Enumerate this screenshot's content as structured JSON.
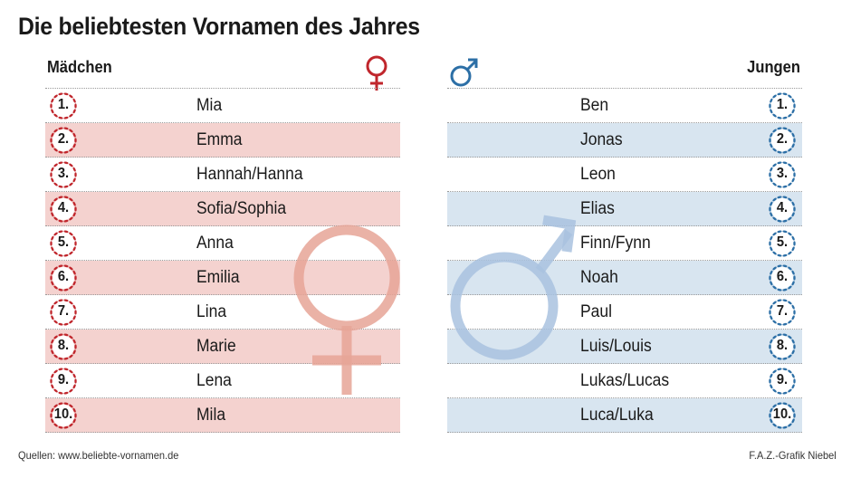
{
  "title": "Die beliebtesten Vornamen des Jahres",
  "girls": {
    "heading": "Mädchen",
    "names": [
      "Mia",
      "Emma",
      "Hannah/Hanna",
      "Sofia/Sophia",
      "Anna",
      "Emilia",
      "Lina",
      "Marie",
      "Lena",
      "Mila"
    ]
  },
  "boys": {
    "heading": "Jungen",
    "names": [
      "Ben",
      "Jonas",
      "Leon",
      "Elias",
      "Finn/Fynn",
      "Noah",
      "Paul",
      "Luis/Louis",
      "Lukas/Lucas",
      "Luca/Luka"
    ]
  },
  "ranks": [
    "1.",
    "2.",
    "3.",
    "4.",
    "5.",
    "6.",
    "7.",
    "8.",
    "9.",
    "10."
  ],
  "source": "Quellen: www.beliebte-vornamen.de",
  "credit": "F.A.Z.-Grafik Niebel",
  "icons": {
    "female": "female-symbol-icon",
    "male": "male-symbol-icon",
    "badge": "laurel-wreath-icon"
  },
  "colors": {
    "female_accent": "#c0262c",
    "female_band": "#f2c7c2",
    "female_symbol": "#e6a597",
    "male_accent": "#2c6fa6",
    "male_band": "#d6e5f1",
    "male_symbol": "#a9c2df"
  },
  "chart_data": {
    "type": "table",
    "columns": [
      "Mädchen",
      "Jungen"
    ],
    "rows": [
      {
        "rank": "1.",
        "girl": "Mia",
        "boy": "Ben"
      },
      {
        "rank": "2.",
        "girl": "Emma",
        "boy": "Jonas"
      },
      {
        "rank": "3.",
        "girl": "Hannah/Hanna",
        "boy": "Leon"
      },
      {
        "rank": "4.",
        "girl": "Sofia/Sophia",
        "boy": "Elias"
      },
      {
        "rank": "5.",
        "girl": "Anna",
        "boy": "Finn/Fynn"
      },
      {
        "rank": "6.",
        "girl": "Emilia",
        "boy": "Noah"
      },
      {
        "rank": "7.",
        "girl": "Lina",
        "boy": "Paul"
      },
      {
        "rank": "8.",
        "girl": "Marie",
        "boy": "Luis/Louis"
      },
      {
        "rank": "9.",
        "girl": "Lena",
        "boy": "Lukas/Lucas"
      },
      {
        "rank": "10.",
        "girl": "Mila",
        "boy": "Luca/Luka"
      }
    ],
    "title": "Die beliebtesten Vornamen des Jahres"
  }
}
